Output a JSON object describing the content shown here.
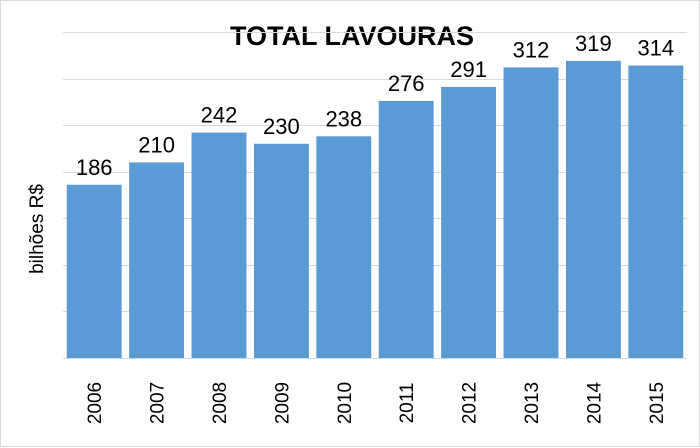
{
  "chart_data": {
    "type": "bar",
    "title": "TOTAL LAVOURAS",
    "xlabel": "",
    "ylabel": "bilhões R$",
    "categories": [
      "2006",
      "2007",
      "2008",
      "2009",
      "2010",
      "2011",
      "2012",
      "2013",
      "2014",
      "2015"
    ],
    "values": [
      186,
      210,
      242,
      230,
      238,
      276,
      291,
      312,
      319,
      314
    ],
    "ylim": [
      0,
      350
    ],
    "ytick_step": 50,
    "grid": true,
    "legend": "none",
    "bar_color": "#5b9bd5",
    "data_labels": true,
    "tick_label_orientation": "vertical"
  }
}
